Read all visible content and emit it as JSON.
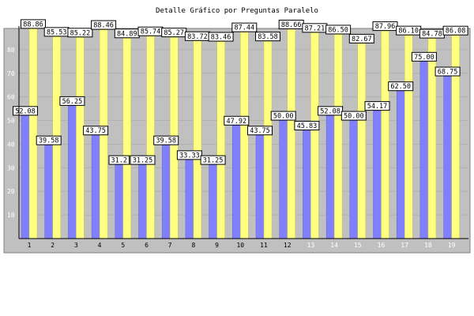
{
  "chart_data": {
    "type": "bar",
    "title": "Detalle Gráfico por Preguntas Paralelo",
    "xlabel": "",
    "ylabel": "",
    "ylim": [
      0,
      90
    ],
    "yticks": [
      10,
      20,
      30,
      40,
      50,
      60,
      70,
      80
    ],
    "grid": true,
    "legend": "none",
    "categories": [
      "1",
      "2",
      "3",
      "4",
      "5",
      "6",
      "7",
      "8",
      "9",
      "10",
      "11",
      "12",
      "13",
      "14",
      "15",
      "16",
      "17",
      "18",
      "19"
    ],
    "category_label_colors": [
      "#000000",
      "#000000",
      "#000000",
      "#000000",
      "#000000",
      "#000000",
      "#000000",
      "#000000",
      "#000000",
      "#000000",
      "#000000",
      "#000000",
      "#ffffff",
      "#ffffff",
      "#ffffff",
      "#ffffff",
      "#ffffff",
      "#ffffff",
      "#ffffff"
    ],
    "series": [
      {
        "color": "#8080ff",
        "values": [
          52.08,
          39.58,
          56.25,
          43.75,
          31.25,
          31.25,
          39.58,
          33.33,
          31.25,
          47.92,
          43.75,
          50.0,
          45.83,
          52.08,
          50.0,
          54.17,
          62.5,
          75.0,
          68.75
        ],
        "labels": [
          "52.08",
          "39.58",
          "56.25",
          "43.75",
          "31.2",
          "31.25",
          "39.58",
          "33.33",
          "31.25",
          "47.92",
          "43.75",
          "50.00",
          "45.83",
          "52.08",
          "50.00",
          "54.17",
          "62.50",
          "75.00",
          "68.75"
        ]
      },
      {
        "color": "#ffff80",
        "values": [
          88.86,
          85.53,
          85.22,
          88.46,
          84.89,
          85.74,
          85.27,
          83.72,
          83.46,
          87.44,
          83.58,
          88.66,
          87.21,
          86.5,
          82.67,
          87.96,
          86.1,
          84.78,
          86.08
        ],
        "labels": [
          "88.86",
          "85.53",
          "85.22",
          "88.46",
          "84.89",
          "85.74",
          "85.27",
          "83.72",
          "83.46",
          "87.44",
          "83.58",
          "88.66",
          "87.21",
          "86.50",
          "82.67",
          "87.96",
          "86.10",
          "84.78",
          "86.08"
        ]
      }
    ],
    "colors": {
      "background": "#ffffff",
      "plot_background": "#c0c0c0",
      "grid": "#b0b0b0"
    }
  }
}
